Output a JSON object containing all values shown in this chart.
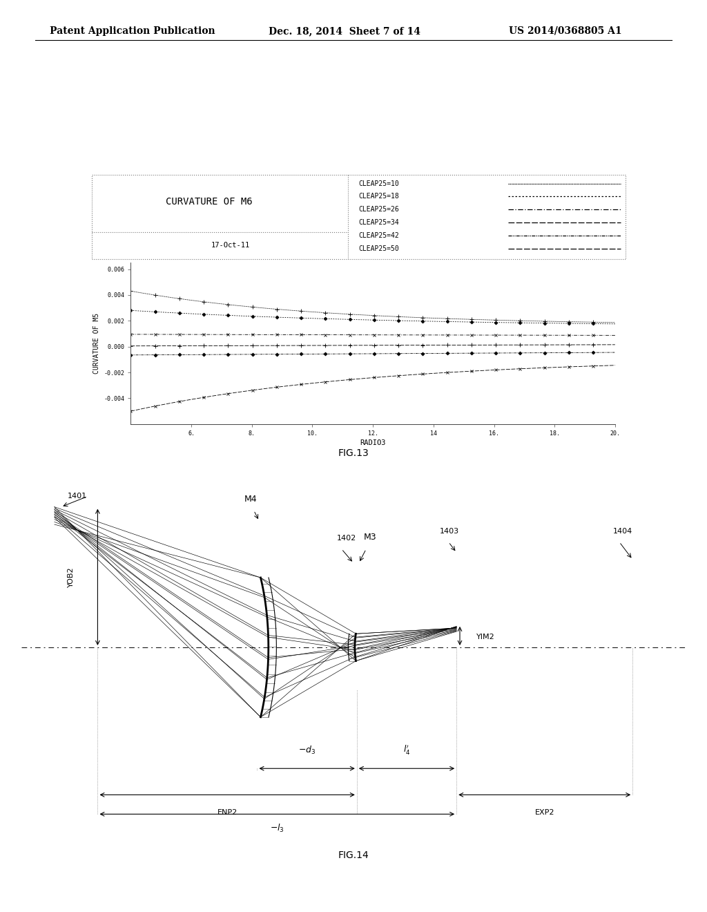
{
  "page_header_left": "Patent Application Publication",
  "page_header_mid": "Dec. 18, 2014  Sheet 7 of 14",
  "page_header_right": "US 2014/0368805 A1",
  "fig13": {
    "title": "CURVATURE OF M6",
    "date_label": "17-Oct-11",
    "xlabel": "RADIO3",
    "ylabel": "CURVATURE OF M5",
    "xlim": [
      4,
      20
    ],
    "ylim": [
      -0.006,
      0.006
    ],
    "xticks": [
      6,
      8,
      10,
      12,
      14,
      16,
      18,
      20
    ],
    "yticks": [
      -0.004,
      -0.002,
      0.0,
      0.002,
      0.004,
      0.006
    ],
    "legend_entries": [
      "CLEAP25=10",
      "CLEAP25=18",
      "CLEAP25=26",
      "CLEAP25=34",
      "CLEAP25=42",
      "CLEAP25=50"
    ],
    "curves": [
      {
        "y0": 0.0043,
        "y1": 0.00165,
        "decay": 2.5,
        "marker": "+"
      },
      {
        "y0": 0.0028,
        "y1": 0.00155,
        "decay": 1.8,
        "marker": "o"
      },
      {
        "y0": 0.00095,
        "y1": 0.00075,
        "decay": 0.5,
        "marker": "x"
      },
      {
        "y0": 5e-05,
        "y1": 0.00015,
        "decay": 0.0,
        "marker": "+"
      },
      {
        "y0": -0.00065,
        "y1": -0.00045,
        "decay": 0.0,
        "marker": "o"
      },
      {
        "y0": -0.005,
        "y1": -0.00145,
        "decay": -2.0,
        "marker": "x"
      }
    ]
  }
}
